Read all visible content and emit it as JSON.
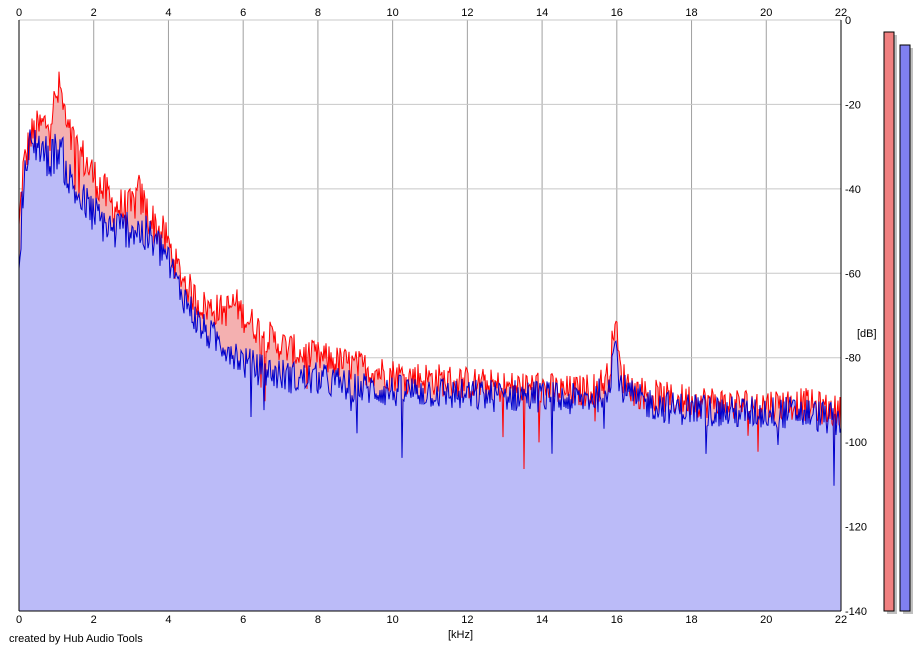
{
  "chart_data": {
    "type": "area",
    "xlabel": "[kHz]",
    "ylabel": "[dB]",
    "xlim": [
      0,
      22
    ],
    "ylim": [
      -140,
      0
    ],
    "xticks": [
      "0",
      "2",
      "4",
      "6",
      "8",
      "10",
      "12",
      "14",
      "16",
      "18",
      "20",
      "22"
    ],
    "yticks": [
      "0",
      "-20",
      "-40",
      "-60",
      "-80",
      "-100",
      "-120",
      "-140"
    ],
    "grid": true,
    "series": [
      {
        "color": "#ff0000",
        "fill": "#f4b0b0",
        "x": [
          0,
          0.1,
          0.3,
          0.5,
          0.8,
          1.1,
          1.3,
          1.6,
          2.0,
          2.5,
          3.0,
          3.2,
          3.5,
          4.0,
          4.2,
          4.5,
          4.8,
          5.0,
          5.5,
          5.8,
          6.0,
          6.5,
          7.0,
          7.5,
          8.0,
          8.5,
          9.0,
          10.0,
          11.0,
          12.0,
          13.0,
          14.0,
          14.5,
          15.0,
          15.5,
          15.8,
          15.95,
          16.1,
          16.5,
          17.0,
          17.5,
          18.0,
          19.0,
          20.0,
          21.0,
          21.5,
          22.0
        ],
        "y": [
          -50,
          -36,
          -28,
          -26,
          -24,
          -16,
          -27,
          -31,
          -37,
          -44,
          -45,
          -41,
          -47,
          -53,
          -58,
          -63,
          -67,
          -68,
          -69,
          -67,
          -70,
          -74,
          -77,
          -79,
          -80,
          -81,
          -82,
          -84,
          -85,
          -86,
          -87,
          -87,
          -88,
          -88,
          -87,
          -84,
          -70,
          -84,
          -88,
          -89,
          -90,
          -90,
          -91,
          -91,
          -91,
          -92,
          -93
        ]
      },
      {
        "color": "#0000cc",
        "fill": "#bbbbf8",
        "x": [
          0,
          0.1,
          0.3,
          0.5,
          0.8,
          1.1,
          1.3,
          1.6,
          2.0,
          2.5,
          3.0,
          3.2,
          3.5,
          4.0,
          4.2,
          4.5,
          4.8,
          5.0,
          5.5,
          5.8,
          6.0,
          6.5,
          7.0,
          7.5,
          8.0,
          8.5,
          9.0,
          10.0,
          11.0,
          12.0,
          13.0,
          14.0,
          14.5,
          15.0,
          15.5,
          15.8,
          15.95,
          16.1,
          16.5,
          17.0,
          17.5,
          18.0,
          19.0,
          20.0,
          21.0,
          21.5,
          22.0
        ],
        "y": [
          -60,
          -40,
          -30,
          -29,
          -33,
          -30,
          -37,
          -42,
          -46,
          -50,
          -49,
          -50,
          -52,
          -56,
          -62,
          -67,
          -72,
          -74,
          -77,
          -79,
          -81,
          -83,
          -84,
          -85,
          -85,
          -86,
          -87,
          -88,
          -88,
          -89,
          -89,
          -89,
          -90,
          -90,
          -89,
          -86,
          -76,
          -87,
          -90,
          -91,
          -92,
          -92,
          -93,
          -93,
          -93,
          -94,
          -95
        ]
      }
    ],
    "level_meters": [
      {
        "color": "#f08080"
      },
      {
        "color": "#8080f0"
      }
    ]
  },
  "footer": {
    "credit": "created by Hub Audio Tools"
  }
}
